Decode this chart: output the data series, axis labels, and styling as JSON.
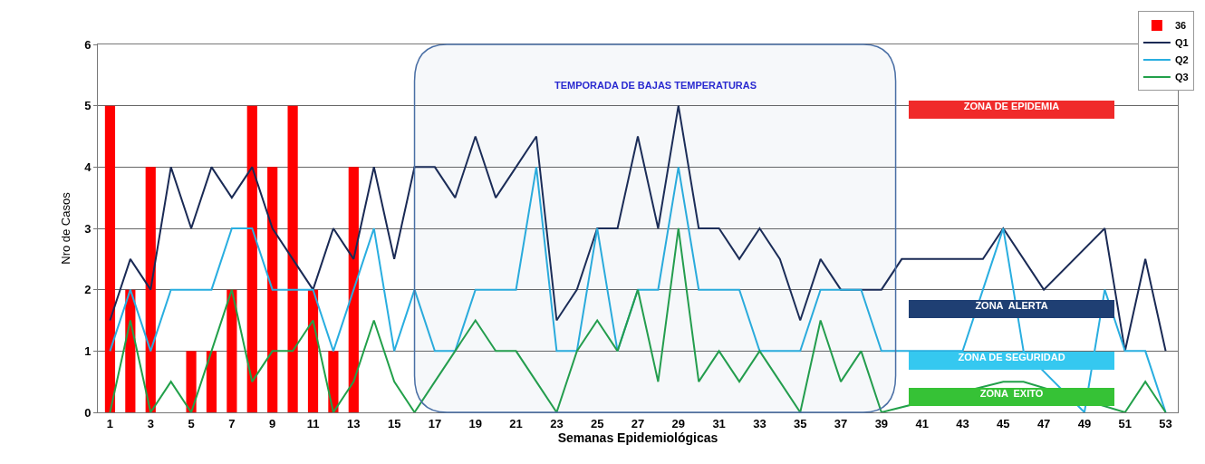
{
  "chart_data": {
    "type": "line",
    "xlabel": "Semanas Epidemiológicas",
    "ylabel": "Nro de Casos",
    "x": [
      1,
      2,
      3,
      4,
      5,
      6,
      7,
      8,
      9,
      10,
      11,
      12,
      13,
      14,
      15,
      16,
      17,
      18,
      19,
      20,
      21,
      22,
      23,
      24,
      25,
      26,
      27,
      28,
      29,
      30,
      31,
      32,
      33,
      34,
      35,
      36,
      37,
      38,
      39,
      40,
      41,
      42,
      43,
      44,
      45,
      46,
      47,
      48,
      49,
      50,
      51,
      52,
      53
    ],
    "series": [
      {
        "name": "36",
        "type": "bar",
        "color": "#ff0000",
        "values": [
          5,
          2,
          4,
          null,
          1,
          1,
          2,
          5,
          4,
          5,
          2,
          1,
          4,
          null,
          null,
          null,
          null,
          null,
          null,
          null,
          null,
          null,
          null,
          null,
          null,
          null,
          null,
          null,
          null,
          null,
          null,
          null,
          null,
          null,
          null,
          null,
          null,
          null,
          null,
          null,
          null,
          null,
          null,
          null,
          null,
          null,
          null,
          null,
          null,
          null,
          null,
          null,
          null
        ]
      },
      {
        "name": "Q1",
        "color": "#1a2a55",
        "values": [
          1.5,
          2.5,
          2,
          4,
          3,
          4,
          3.5,
          4,
          3,
          2.5,
          2,
          3,
          2.5,
          4,
          2.5,
          4,
          4,
          3.5,
          4.5,
          3.5,
          4,
          4.5,
          1.5,
          2,
          3,
          3,
          4.5,
          3,
          5,
          3,
          3,
          2.5,
          3,
          2.5,
          1.5,
          2.5,
          2,
          2,
          2,
          2.5,
          null,
          null,
          null,
          2.5,
          3,
          null,
          2,
          null,
          null,
          3,
          1,
          2.5,
          1
        ]
      },
      {
        "name": "Q2",
        "color": "#29aee0",
        "values": [
          1,
          2,
          1,
          2,
          2,
          2,
          3,
          3,
          2,
          2,
          2,
          1,
          2,
          3,
          1,
          2,
          1,
          1,
          2,
          2,
          2,
          4,
          1,
          1,
          3,
          1,
          2,
          2,
          4,
          2,
          2,
          2,
          1,
          1,
          1,
          2,
          2,
          2,
          1,
          1,
          null,
          null,
          1,
          2,
          3,
          1,
          null,
          null,
          0,
          2,
          1,
          1,
          0
        ]
      },
      {
        "name": "Q3",
        "color": "#22a04a",
        "values": [
          0,
          1.5,
          0,
          0.5,
          0,
          1,
          2,
          0.5,
          1,
          1,
          1.5,
          0,
          0.5,
          1.5,
          0.5,
          0,
          0.5,
          1,
          1.5,
          1,
          1,
          0.5,
          0,
          1,
          1.5,
          1,
          2,
          0.5,
          3,
          0.5,
          1,
          0.5,
          1,
          0.5,
          0,
          1.5,
          0.5,
          1,
          0,
          null,
          null,
          null,
          null,
          null,
          0.5,
          0.5,
          null,
          null,
          null,
          null,
          0,
          0.5,
          0
        ]
      }
    ],
    "xlim": [
      0.4,
      53.6
    ],
    "xticks": [
      1,
      3,
      5,
      7,
      9,
      11,
      13,
      15,
      17,
      19,
      21,
      23,
      25,
      27,
      29,
      31,
      33,
      35,
      37,
      39,
      41,
      43,
      45,
      47,
      49,
      51,
      53
    ],
    "ylim": [
      0,
      6
    ],
    "yticks": [
      0,
      1,
      2,
      3,
      4,
      5,
      6
    ],
    "grid": "y",
    "legend": "top right",
    "marker": "none",
    "line_style": "solid",
    "bands": [
      {
        "axis": "x",
        "from": 16,
        "to": 39.7,
        "label": "TEMPORADA DE BAJAS TEMPERATURAS",
        "color": "#4a6fa5"
      }
    ],
    "annotations": [
      "ZONA DE EPIDEMIA",
      "ZONA  ALERTA",
      "ZONA DE SEGURIDAD",
      "ZONA  EXITO"
    ]
  }
}
